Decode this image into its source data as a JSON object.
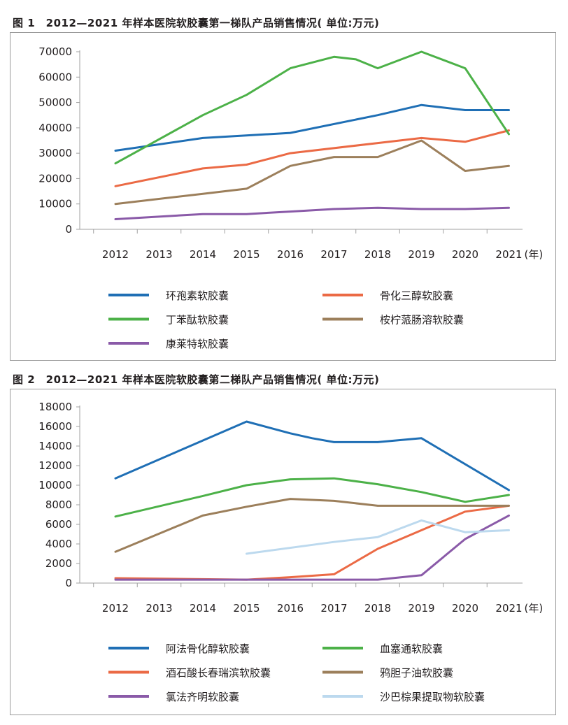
{
  "chart_data": [
    {
      "type": "line",
      "title": "图 1　2012—2021 年样本医院软胶囊第一梯队产品销售情况( 单位:万元)",
      "categories": [
        "2012",
        "2013",
        "2014",
        "2015",
        "2016",
        "2017",
        "2018",
        "2019",
        "2020",
        "2021"
      ],
      "x_unit": "(年)",
      "y_ticks": [
        0,
        10000,
        20000,
        30000,
        40000,
        50000,
        60000,
        70000
      ],
      "ylim": [
        0,
        70000
      ],
      "grid": false,
      "series": [
        {
          "name": "环孢素软胶囊",
          "color": "#1f6fb5",
          "points": [
            [
              0,
              31000
            ],
            [
              2,
              36000
            ],
            [
              4,
              38000
            ],
            [
              6,
              45000
            ],
            [
              7,
              49000
            ],
            [
              8,
              47000
            ],
            [
              9,
              47000
            ]
          ]
        },
        {
          "name": "骨化三醇软胶囊",
          "color": "#eb6a45",
          "points": [
            [
              0,
              17000
            ],
            [
              2,
              24000
            ],
            [
              3,
              25500
            ],
            [
              4,
              30000
            ],
            [
              6,
              34000
            ],
            [
              7,
              36000
            ],
            [
              8,
              34500
            ],
            [
              9,
              39000
            ]
          ]
        },
        {
          "name": "丁苯酞软胶囊",
          "color": "#4cb148",
          "points": [
            [
              0,
              26000
            ],
            [
              2,
              45000
            ],
            [
              3,
              53000
            ],
            [
              4,
              63500
            ],
            [
              5,
              68000
            ],
            [
              5.5,
              67000
            ],
            [
              6,
              63500
            ],
            [
              7,
              70000
            ],
            [
              8,
              63500
            ],
            [
              9,
              37500
            ]
          ]
        },
        {
          "name": "桉柠蒎肠溶软胶囊",
          "color": "#9c7f5b",
          "points": [
            [
              0,
              10000
            ],
            [
              2,
              14000
            ],
            [
              3,
              16000
            ],
            [
              4,
              25000
            ],
            [
              5,
              28500
            ],
            [
              6,
              28500
            ],
            [
              7,
              35000
            ],
            [
              8,
              23000
            ],
            [
              9,
              25000
            ]
          ]
        },
        {
          "name": "康莱特软胶囊",
          "color": "#8a5aa8",
          "points": [
            [
              0,
              4000
            ],
            [
              2,
              6000
            ],
            [
              3,
              6000
            ],
            [
              4,
              7000
            ],
            [
              5,
              8000
            ],
            [
              6,
              8500
            ],
            [
              7,
              8000
            ],
            [
              8,
              8000
            ],
            [
              9,
              8500
            ]
          ]
        }
      ]
    },
    {
      "type": "line",
      "title": "图 2　2012—2021 年样本医院软胶囊第二梯队产品销售情况( 单位:万元)",
      "categories": [
        "2012",
        "2013",
        "2014",
        "2015",
        "2016",
        "2017",
        "2018",
        "2019",
        "2020",
        "2021"
      ],
      "x_unit": "(年)",
      "y_ticks": [
        0,
        2000,
        4000,
        6000,
        8000,
        10000,
        12000,
        14000,
        16000,
        18000
      ],
      "ylim": [
        0,
        18000
      ],
      "grid": false,
      "series": [
        {
          "name": "阿法骨化醇软胶囊",
          "color": "#1f6fb5",
          "points": [
            [
              0,
              10700
            ],
            [
              3,
              16500
            ],
            [
              4,
              15300
            ],
            [
              4.5,
              14800
            ],
            [
              5,
              14400
            ],
            [
              6,
              14400
            ],
            [
              7,
              14800
            ],
            [
              9,
              9500
            ]
          ]
        },
        {
          "name": "血塞通软胶囊",
          "color": "#4cb148",
          "points": [
            [
              0,
              6800
            ],
            [
              2,
              8900
            ],
            [
              3,
              10000
            ],
            [
              4,
              10600
            ],
            [
              5,
              10700
            ],
            [
              6,
              10100
            ],
            [
              7,
              9300
            ],
            [
              8,
              8300
            ],
            [
              9,
              9000
            ]
          ]
        },
        {
          "name": "酒石酸长春瑞滨软胶囊",
          "color": "#eb6a45",
          "points": [
            [
              0,
              500
            ],
            [
              3,
              350
            ],
            [
              4,
              600
            ],
            [
              5,
              900
            ],
            [
              6,
              3500
            ],
            [
              7,
              5400
            ],
            [
              8,
              7300
            ],
            [
              9,
              7900
            ]
          ]
        },
        {
          "name": "鸦胆子油软胶囊",
          "color": "#9c7f5b",
          "points": [
            [
              0,
              3200
            ],
            [
              2,
              6900
            ],
            [
              3,
              7800
            ],
            [
              4,
              8600
            ],
            [
              5,
              8400
            ],
            [
              6,
              7900
            ],
            [
              7,
              7900
            ],
            [
              8,
              7900
            ],
            [
              9,
              7900
            ]
          ]
        },
        {
          "name": "氯法齐明软胶囊",
          "color": "#8a5aa8",
          "points": [
            [
              0,
              350
            ],
            [
              3,
              350
            ],
            [
              4,
              350
            ],
            [
              5,
              350
            ],
            [
              6,
              350
            ],
            [
              7,
              800
            ],
            [
              8,
              4500
            ],
            [
              9,
              6900
            ]
          ]
        },
        {
          "name": "沙巴棕果提取物软胶囊",
          "color": "#bcd9ee",
          "points": [
            [
              3,
              3000
            ],
            [
              5,
              4200
            ],
            [
              6,
              4700
            ],
            [
              7,
              6400
            ],
            [
              8,
              5200
            ],
            [
              9,
              5400
            ]
          ]
        }
      ]
    }
  ]
}
